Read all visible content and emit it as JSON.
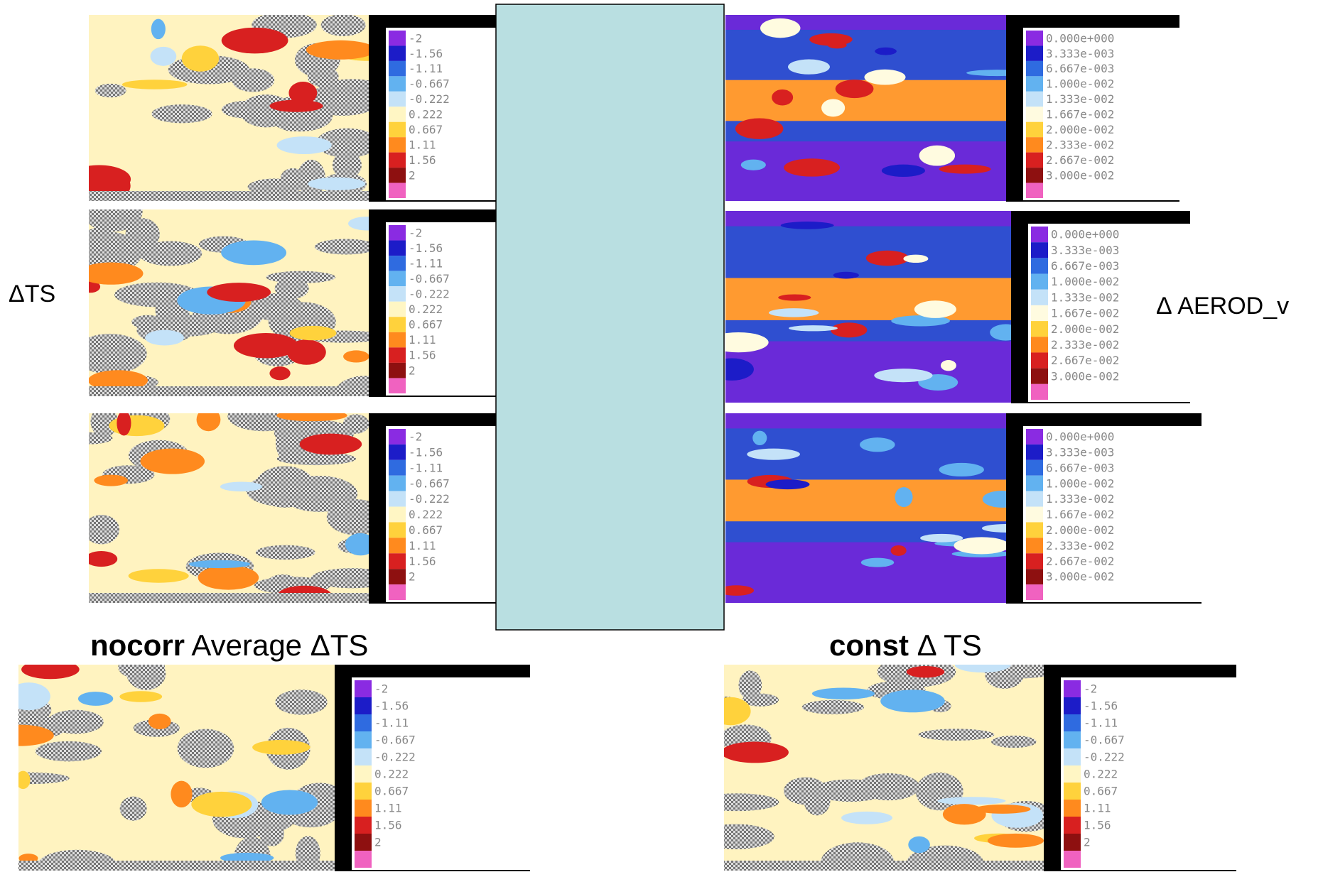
{
  "labels": {
    "ts_side": "ΔTS",
    "aerod_side": "Δ AEROD_v"
  },
  "bottom_titles": [
    {
      "bold": "nocorr",
      "rest": " Average ΔTS"
    },
    {
      "bold": "const",
      "rest": " Δ TS"
    }
  ],
  "colorbars": {
    "ts": [
      "-2",
      "-1.56",
      "-1.11",
      "-0.667",
      "-0.222",
      "0.222",
      "0.667",
      "1.11",
      "1.56",
      "2"
    ],
    "aerod": [
      "0.000e+000",
      "3.333e-003",
      "6.667e-003",
      "1.000e-002",
      "1.333e-002",
      "1.667e-002",
      "2.000e-002",
      "2.333e-002",
      "2.667e-002",
      "3.000e-002"
    ]
  }
}
